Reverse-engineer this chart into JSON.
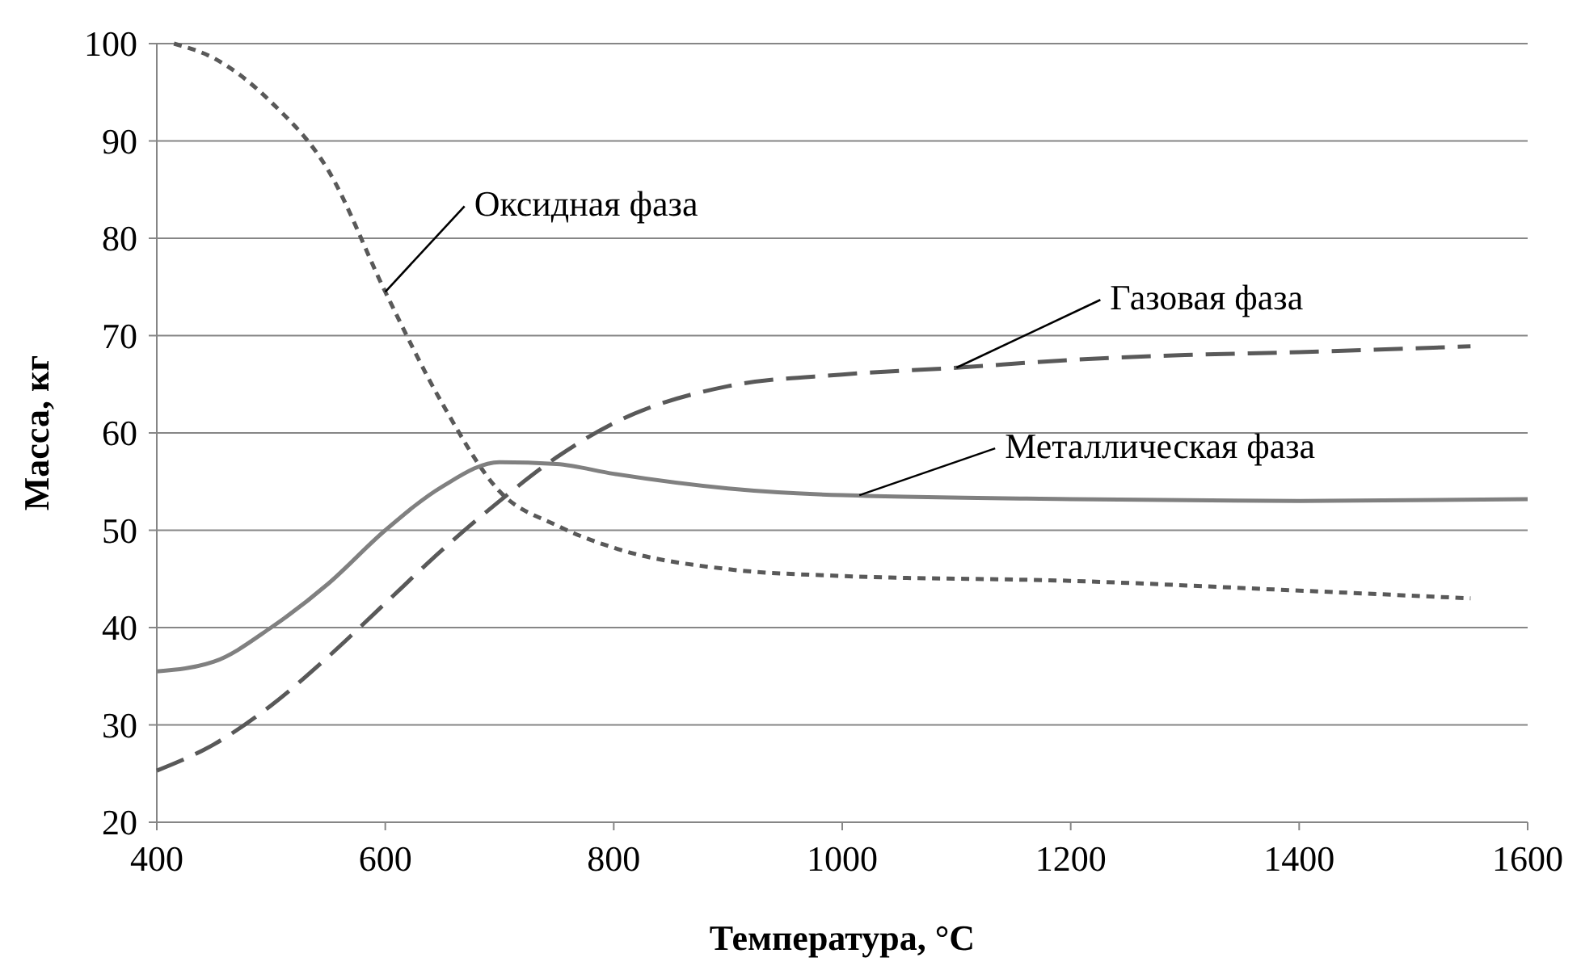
{
  "chart_data": {
    "type": "line",
    "xlabel": "Температура, °C",
    "ylabel": "Масса, кг",
    "xlim": [
      400,
      1600
    ],
    "xticks": [
      400,
      600,
      800,
      1000,
      1200,
      1400,
      1600
    ],
    "ylim": [
      20,
      100
    ],
    "yticks": [
      20,
      30,
      40,
      50,
      60,
      70,
      80,
      90,
      100
    ],
    "grid": "y",
    "series": [
      {
        "color": "#595959",
        "line_style": "dotted",
        "x": [
          415,
          450,
          500,
          550,
          600,
          650,
          700,
          750,
          800,
          900,
          1000,
          1200,
          1400,
          1550
        ],
        "values": [
          100,
          98.5,
          94,
          87,
          74.5,
          63,
          54,
          50.5,
          48.2,
          46,
          45.3,
          44.8,
          43.8,
          43
        ]
      },
      {
        "color": "#595959",
        "line_style": "dashed",
        "x": [
          400,
          450,
          500,
          550,
          600,
          650,
          700,
          750,
          800,
          900,
          1000,
          1100,
          1200,
          1300,
          1400,
          1550
        ],
        "values": [
          25.3,
          28,
          32,
          37,
          42.5,
          48,
          53,
          57.5,
          61,
          64.8,
          66,
          66.7,
          67.5,
          68,
          68.3,
          68.9
        ]
      },
      {
        "color": "#808080",
        "line_style": "solid",
        "x": [
          400,
          450,
          500,
          550,
          600,
          650,
          700,
          750,
          800,
          900,
          1000,
          1200,
          1400,
          1600
        ],
        "values": [
          35.5,
          36.5,
          40,
          44.5,
          50,
          54.5,
          57,
          56.8,
          55.8,
          54.3,
          53.6,
          53.2,
          53,
          53.2
        ]
      }
    ],
    "annotations": [
      {
        "text": "Оксидная фаза",
        "x": 600,
        "y": 74.5
      },
      {
        "text": "Газовая фаза",
        "x": 1100,
        "y": 66.7
      },
      {
        "text": "Металлическая фаза",
        "x": 1015,
        "y": 53.6
      }
    ]
  }
}
